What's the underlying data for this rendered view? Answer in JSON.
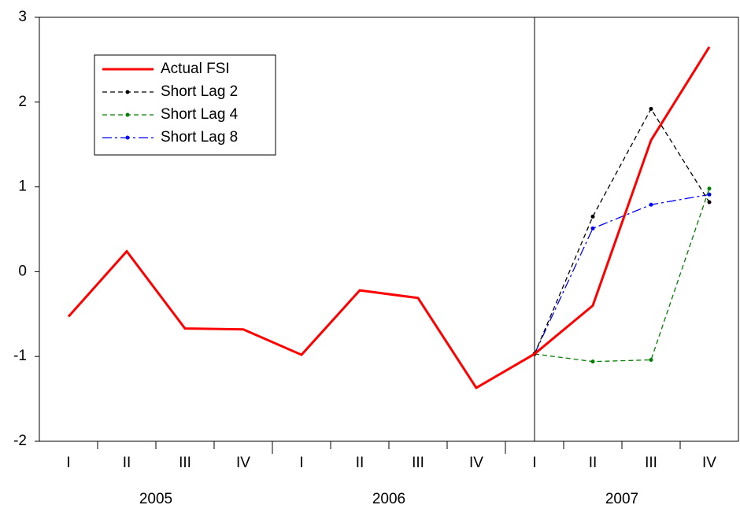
{
  "chart_data": {
    "type": "line",
    "categories": [
      "I",
      "II",
      "III",
      "IV",
      "I",
      "II",
      "III",
      "IV",
      "I",
      "II",
      "III",
      "IV"
    ],
    "x_groups": [
      {
        "label": "2005",
        "span": 4
      },
      {
        "label": "2006",
        "span": 4
      },
      {
        "label": "2007",
        "span": 4
      }
    ],
    "vline_index": 8,
    "ylim": [
      -2,
      3
    ],
    "yticks": [
      -2,
      -1,
      0,
      1,
      2,
      3
    ],
    "grid": false,
    "legend": "upper left",
    "series": [
      {
        "name": "Actual FSI",
        "color": "#ff0000",
        "style": "solid",
        "values": [
          -0.53,
          0.24,
          -0.67,
          -0.68,
          -0.98,
          -0.22,
          -0.31,
          -1.37,
          -0.97,
          -0.4,
          1.55,
          2.65
        ]
      },
      {
        "name": "Short Lag 2",
        "color": "#000000",
        "style": "dashed",
        "values": [
          null,
          null,
          null,
          null,
          null,
          null,
          null,
          null,
          -0.97,
          0.65,
          1.92,
          0.82
        ]
      },
      {
        "name": "Short Lag 4",
        "color": "#008000",
        "style": "dashed",
        "values": [
          null,
          null,
          null,
          null,
          null,
          null,
          null,
          null,
          -0.97,
          -1.06,
          -1.04,
          0.98
        ]
      },
      {
        "name": "Short Lag 8",
        "color": "#0000ff",
        "style": "dashdot",
        "values": [
          null,
          null,
          null,
          null,
          null,
          null,
          null,
          null,
          -0.97,
          0.51,
          0.79,
          0.91
        ]
      }
    ]
  }
}
